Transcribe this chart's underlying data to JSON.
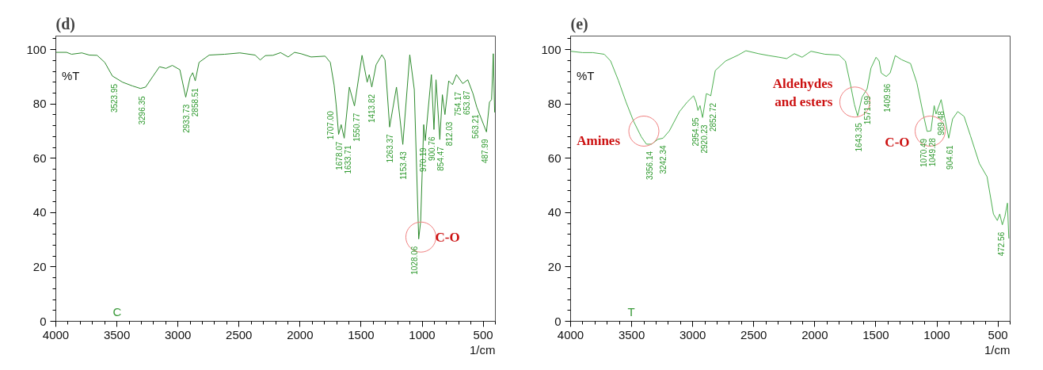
{
  "chart_data": [
    {
      "type": "line",
      "title": "(d)",
      "xlabel": "1/cm",
      "ylabel": "%T",
      "xlim": [
        4000,
        400
      ],
      "ylim": [
        0,
        105
      ],
      "xticks": [
        4000,
        3500,
        3000,
        2500,
        2000,
        1500,
        1000,
        500
      ],
      "yticks": [
        0,
        20,
        40,
        60,
        80,
        100
      ],
      "grid": false,
      "series": [
        {
          "color": "#2e8b2e",
          "x": [
            4000,
            3912,
            3871,
            3787,
            3725,
            3662,
            3599,
            3537,
            3453,
            3370,
            3307,
            3265,
            3203,
            3151,
            3098,
            3046,
            2984,
            2936,
            2900,
            2879,
            2858,
            2827,
            2744,
            2618,
            2493,
            2368,
            2326,
            2284,
            2222,
            2159,
            2097,
            2045,
            1992,
            1909,
            1794,
            1752,
            1721,
            1704,
            1684,
            1663,
            1638,
            1596,
            1554,
            1492,
            1450,
            1433,
            1412,
            1377,
            1329,
            1304,
            1266,
            1210,
            1158,
            1101,
            1064,
            1028,
            1012,
            987,
            974,
            924,
            903,
            886,
            855,
            834,
            813,
            782,
            751,
            719,
            667,
            626,
            584,
            552,
            473,
            448,
            431,
            417,
            406
          ],
          "values": [
            99.0,
            99.0,
            98.3,
            98.8,
            98.0,
            97.9,
            95.3,
            90.3,
            88.0,
            86.6,
            85.7,
            86.2,
            90.3,
            93.7,
            93.1,
            94.2,
            92.6,
            82.5,
            89.8,
            91.5,
            88.5,
            95.3,
            98.0,
            98.3,
            98.8,
            98.0,
            96.2,
            97.8,
            97.9,
            98.9,
            97.3,
            99.0,
            98.5,
            97.3,
            97.6,
            95.3,
            87.0,
            79.8,
            68.8,
            72.4,
            67.4,
            86.2,
            79.3,
            97.9,
            88.0,
            90.8,
            86.2,
            94.4,
            98.1,
            96.2,
            71.5,
            86.2,
            65.1,
            98.1,
            85.3,
            30.3,
            36.7,
            72.4,
            66.5,
            90.8,
            70.6,
            88.9,
            66.9,
            83.4,
            76.1,
            88.5,
            87.1,
            90.8,
            87.5,
            88.9,
            83.9,
            78.8,
            69.7,
            80.7,
            81.6,
            98.5,
            77.0
          ]
        }
      ],
      "annotations": [
        "C",
        {
          "text": "3523.95",
          "x": 3523.95,
          "y": 90
        },
        {
          "text": "3296.35",
          "x": 3296.35,
          "y": 85.5
        },
        {
          "text": "2933.73",
          "x": 2933.73,
          "y": 82.5
        },
        {
          "text": "2858.51",
          "x": 2858.51,
          "y": 88.5
        },
        {
          "text": "1707.00",
          "x": 1707.0,
          "y": 80
        },
        {
          "text": "1678.07",
          "x": 1678.07,
          "y": 68.8
        },
        {
          "text": "1633.71",
          "x": 1633.71,
          "y": 67.4
        },
        {
          "text": "1550.77",
          "x": 1550.77,
          "y": 79.3
        },
        {
          "text": "1413.82",
          "x": 1413.82,
          "y": 86.2
        },
        {
          "text": "1263.37",
          "x": 1263.37,
          "y": 71.5
        },
        {
          "text": "1153.43",
          "x": 1153.43,
          "y": 65.1
        },
        {
          "text": "1028.06",
          "x": 1028.06,
          "y": 30.3
        },
        {
          "text": "970.19",
          "x": 970.19,
          "y": 66.5
        },
        {
          "text": "900.76",
          "x": 900.76,
          "y": 70.6
        },
        {
          "text": "854.47",
          "x": 854.47,
          "y": 66.9
        },
        {
          "text": "812.03",
          "x": 812.03,
          "y": 76.1
        },
        {
          "text": "754.17",
          "x": 754.17,
          "y": 87.1
        },
        {
          "text": "653.87",
          "x": 653.87,
          "y": 87.5
        },
        {
          "text": "563.21",
          "x": 563.21,
          "y": 78.8
        },
        {
          "text": "487.99",
          "x": 487.99,
          "y": 69.7
        },
        {
          "text": "C-O",
          "x": 1010,
          "y": 31
        }
      ]
    },
    {
      "type": "line",
      "title": "(e)",
      "xlabel": "1/cm",
      "ylabel": "%T",
      "xlim": [
        4000,
        400
      ],
      "ylim": [
        0,
        105
      ],
      "xticks": [
        4000,
        3500,
        3000,
        2500,
        2000,
        1500,
        1000,
        500
      ],
      "yticks": [
        0,
        20,
        40,
        60,
        80,
        100
      ],
      "grid": false,
      "series": [
        {
          "color": "#4caf50",
          "x": [
            4000,
            3902,
            3818,
            3724,
            3672,
            3609,
            3546,
            3484,
            3421,
            3379,
            3337,
            3285,
            3243,
            3191,
            3108,
            3045,
            2993,
            2972,
            2957,
            2940,
            2919,
            2888,
            2867,
            2852,
            2815,
            2731,
            2627,
            2564,
            2460,
            2376,
            2292,
            2230,
            2167,
            2104,
            2031,
            1916,
            1801,
            1749,
            1707,
            1676,
            1649,
            1613,
            1571,
            1540,
            1498,
            1473,
            1456,
            1415,
            1383,
            1341,
            1289,
            1216,
            1164,
            1112,
            1080,
            1049,
            1022,
            1007,
            965,
            934,
            903,
            871,
            829,
            777,
            725,
            652,
            589,
            537,
            505,
            485,
            464,
            443,
            422,
            411
          ],
          "values": [
            99.4,
            98.9,
            98.9,
            98.3,
            95.8,
            88.7,
            80.7,
            73.6,
            67.9,
            65.2,
            65.2,
            67.0,
            67.4,
            70.1,
            77.2,
            80.7,
            83.0,
            80.7,
            77.6,
            79.4,
            75.0,
            83.8,
            83.4,
            83.0,
            92.3,
            95.8,
            98.0,
            99.6,
            98.5,
            97.8,
            97.2,
            96.7,
            98.5,
            97.2,
            99.4,
            98.3,
            98.0,
            95.8,
            87.0,
            79.9,
            75.6,
            82.5,
            85.6,
            93.2,
            97.2,
            95.8,
            91.4,
            90.1,
            91.4,
            97.8,
            96.3,
            94.9,
            87.8,
            76.3,
            69.9,
            70.1,
            79.4,
            76.3,
            81.6,
            74.5,
            67.4,
            74.5,
            77.2,
            75.4,
            68.3,
            58.1,
            53.2,
            39.5,
            37.1,
            39.5,
            35.5,
            38.6,
            43.5,
            30.6
          ]
        }
      ],
      "annotations": [
        "T",
        {
          "text": "3356.14",
          "x": 3356.14,
          "y": 65.2
        },
        {
          "text": "3242.34",
          "x": 3242.34,
          "y": 67.4
        },
        {
          "text": "2954.95",
          "x": 2954.95,
          "y": 77.6
        },
        {
          "text": "2920.23",
          "x": 2920.23,
          "y": 75
        },
        {
          "text": "2852.72",
          "x": 2852.72,
          "y": 83
        },
        {
          "text": "1643.35",
          "x": 1643.35,
          "y": 75.6
        },
        {
          "text": "1571.99",
          "x": 1571.99,
          "y": 85.6
        },
        {
          "text": "1409.96",
          "x": 1409.96,
          "y": 90.1
        },
        {
          "text": "1070.49",
          "x": 1070.49,
          "y": 69.9
        },
        {
          "text": "1049.28",
          "x": 1049.28,
          "y": 70.1
        },
        {
          "text": "989.48",
          "x": 989.48,
          "y": 80
        },
        {
          "text": "904.61",
          "x": 904.61,
          "y": 67.4
        },
        {
          "text": "472.56",
          "x": 472.56,
          "y": 35.5
        },
        {
          "text": "Amines",
          "x": 3400,
          "y": 70
        },
        {
          "text": "Aldehydes\nand esters",
          "x": 1672,
          "y": 80.7
        },
        {
          "text": "C-O",
          "x": 1055,
          "y": 70
        }
      ]
    }
  ]
}
